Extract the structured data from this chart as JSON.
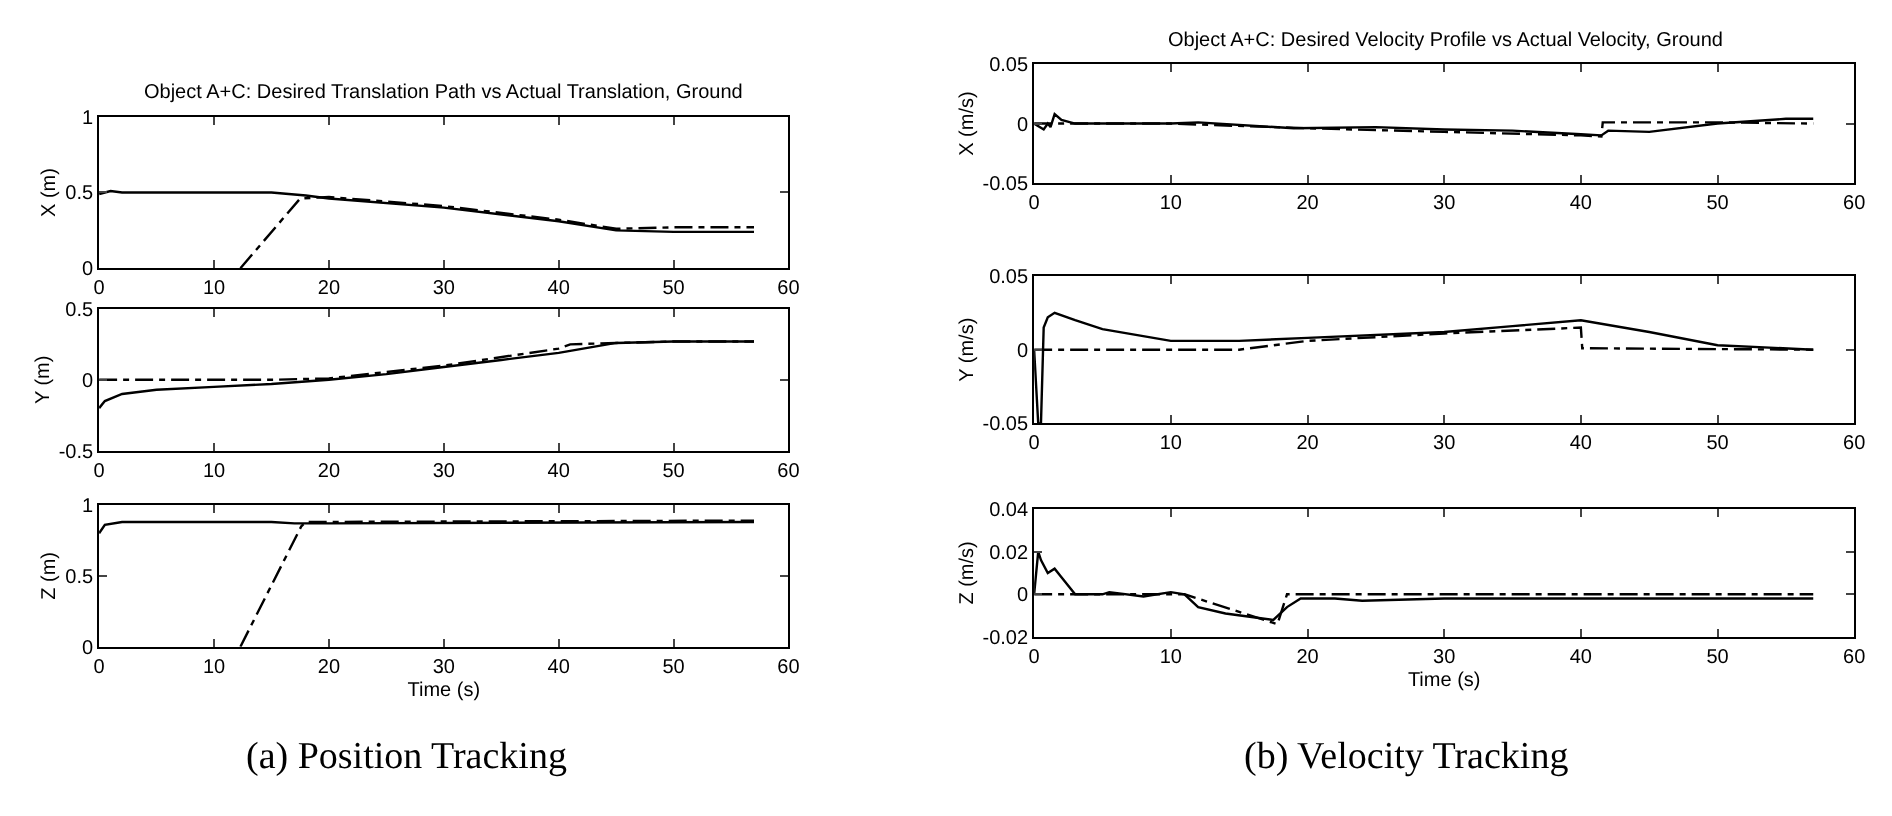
{
  "chart_data": [
    {
      "type": "line",
      "title": "Object A+C: Desired Translation Path vs Actual Translation, Ground",
      "ylabel": "X (m)",
      "xlim": [
        0,
        60
      ],
      "xticks": [
        0,
        10,
        20,
        30,
        40,
        50,
        60
      ],
      "ylim": [
        0,
        1
      ],
      "yticks": [
        0,
        0.5,
        1
      ],
      "series": [
        {
          "color": "#000000",
          "line_style": "solid",
          "x": [
            0,
            1,
            2,
            10,
            15,
            18,
            20,
            30,
            40,
            45,
            50,
            57
          ],
          "values": [
            0.49,
            0.51,
            0.5,
            0.5,
            0.5,
            0.48,
            0.46,
            0.4,
            0.31,
            0.25,
            0.24,
            0.24
          ]
        },
        {
          "color": "#000000",
          "line_style": "dashdot",
          "x": [
            12.3,
            17.5,
            20,
            30,
            40,
            45,
            50,
            57
          ],
          "values": [
            0,
            0.46,
            0.47,
            0.41,
            0.32,
            0.26,
            0.27,
            0.27
          ]
        }
      ]
    },
    {
      "type": "line",
      "ylabel": "Y (m)",
      "xlim": [
        0,
        60
      ],
      "xticks": [
        0,
        10,
        20,
        30,
        40,
        50,
        60
      ],
      "ylim": [
        -0.5,
        0.5
      ],
      "yticks": [
        -0.5,
        0,
        0.5
      ],
      "series": [
        {
          "color": "#000000",
          "line_style": "solid",
          "x": [
            0,
            0.5,
            2,
            5,
            10,
            15,
            20,
            25,
            30,
            35,
            40,
            45,
            50,
            57
          ],
          "values": [
            -0.2,
            -0.15,
            -0.1,
            -0.07,
            -0.05,
            -0.03,
            0,
            0.04,
            0.09,
            0.14,
            0.19,
            0.26,
            0.27,
            0.27
          ]
        },
        {
          "color": "#000000",
          "line_style": "dashdot",
          "x": [
            0,
            15,
            20,
            30,
            40,
            41,
            45,
            50,
            57
          ],
          "values": [
            0,
            0,
            0.01,
            0.1,
            0.22,
            0.25,
            0.26,
            0.27,
            0.27
          ]
        }
      ]
    },
    {
      "type": "line",
      "ylabel": "Z (m)",
      "xlabel": "Time (s)",
      "xlim": [
        0,
        60
      ],
      "xticks": [
        0,
        10,
        20,
        30,
        40,
        50,
        60
      ],
      "ylim": [
        0,
        1
      ],
      "yticks": [
        0,
        0.5,
        1
      ],
      "annotations": [
        "(a) Position Tracking"
      ],
      "series": [
        {
          "color": "#000000",
          "line_style": "solid",
          "x": [
            0,
            0.5,
            2,
            15,
            17,
            20,
            57
          ],
          "values": [
            0.8,
            0.86,
            0.88,
            0.88,
            0.87,
            0.87,
            0.88
          ]
        },
        {
          "color": "#000000",
          "line_style": "dashdot",
          "x": [
            12.3,
            17.6,
            18,
            57
          ],
          "values": [
            0,
            0.85,
            0.88,
            0.89
          ]
        }
      ]
    },
    {
      "type": "line",
      "title": "Object A+C: Desired Velocity Profile vs Actual Velocity, Ground",
      "ylabel": "X (m/s)",
      "xlim": [
        0,
        60
      ],
      "xticks": [
        0,
        10,
        20,
        30,
        40,
        50,
        60
      ],
      "ylim": [
        -0.05,
        0.05
      ],
      "yticks": [
        -0.05,
        0,
        0.05
      ],
      "series": [
        {
          "color": "#000000",
          "line_style": "solid",
          "x": [
            0,
            0.7,
            1,
            1.2,
            1.5,
            2,
            3,
            10,
            12,
            19,
            25,
            30,
            35,
            40,
            41.5,
            42,
            45,
            50,
            55,
            57
          ],
          "values": [
            0,
            -0.005,
            0,
            -0.003,
            0.008,
            0.003,
            0,
            0,
            0.001,
            -0.004,
            -0.003,
            -0.005,
            -0.006,
            -0.009,
            -0.01,
            -0.006,
            -0.007,
            0,
            0.004,
            0.004
          ]
        },
        {
          "color": "#000000",
          "line_style": "dashdot",
          "x": [
            0,
            10,
            20,
            30,
            40,
            41.5,
            41.6,
            45,
            50,
            57
          ],
          "values": [
            0,
            0,
            -0.004,
            -0.007,
            -0.01,
            -0.011,
            0.001,
            0.001,
            0.001,
            0
          ]
        }
      ]
    },
    {
      "type": "line",
      "ylabel": "Y (m/s)",
      "xlim": [
        0,
        60
      ],
      "xticks": [
        0,
        10,
        20,
        30,
        40,
        50,
        60
      ],
      "ylim": [
        -0.05,
        0.05
      ],
      "yticks": [
        -0.05,
        0,
        0.05
      ],
      "series": [
        {
          "color": "#000000",
          "line_style": "solid",
          "x": [
            0,
            0.3,
            0.5,
            0.7,
            1,
            1.5,
            3,
            5,
            10,
            15,
            20,
            30,
            35,
            40,
            45,
            50,
            57
          ],
          "values": [
            0,
            -0.05,
            -0.05,
            0.015,
            0.022,
            0.025,
            0.02,
            0.014,
            0.006,
            0.006,
            0.008,
            0.012,
            0.016,
            0.02,
            0.012,
            0.003,
            0
          ]
        },
        {
          "color": "#000000",
          "line_style": "dashdot",
          "x": [
            0,
            15,
            20,
            30,
            40,
            40.1,
            57
          ],
          "values": [
            0,
            0,
            0.006,
            0.011,
            0.015,
            0.001,
            0
          ]
        }
      ]
    },
    {
      "type": "line",
      "ylabel": "Z (m/s)",
      "xlabel": "Time (s)",
      "xlim": [
        0,
        60
      ],
      "xticks": [
        0,
        10,
        20,
        30,
        40,
        50,
        60
      ],
      "ylim": [
        -0.02,
        0.04
      ],
      "yticks": [
        -0.02,
        0,
        0.02,
        0.04
      ],
      "annotations": [
        "(b) Velocity Tracking"
      ],
      "series": [
        {
          "color": "#000000",
          "line_style": "solid",
          "x": [
            0,
            0.3,
            0.5,
            1,
            1.5,
            2,
            3,
            5,
            5.5,
            8,
            10,
            11,
            12,
            14,
            17.5,
            18.5,
            19.5,
            22,
            24,
            30,
            40,
            57
          ],
          "values": [
            0,
            0.02,
            0.016,
            0.01,
            0.012,
            0.008,
            0,
            0,
            0.001,
            -0.001,
            0.001,
            0,
            -0.006,
            -0.009,
            -0.012,
            -0.006,
            -0.002,
            -0.002,
            -0.003,
            -0.002,
            -0.002,
            -0.002
          ]
        },
        {
          "color": "#000000",
          "line_style": "dashdot",
          "x": [
            0,
            11,
            17.8,
            18.5,
            57
          ],
          "values": [
            0,
            0,
            -0.014,
            0,
            0
          ]
        }
      ]
    }
  ]
}
